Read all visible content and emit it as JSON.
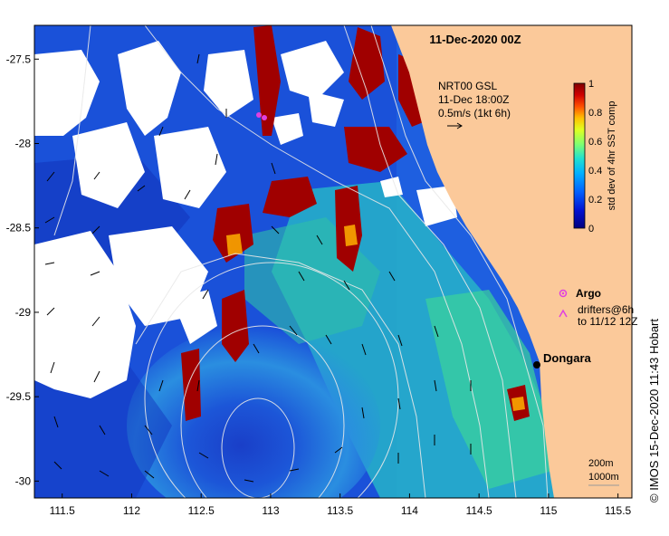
{
  "title": "11-Dec-2020 00Z",
  "current_info": {
    "line1": "NRT00 GSL",
    "line2": "11-Dec 18:00Z",
    "line3": "0.5m/s (1kt 6h)"
  },
  "colorbar": {
    "label": "std dev of 4hr SST comp",
    "ticks": [
      "0",
      "0.2",
      "0.4",
      "0.6",
      "0.8",
      "1"
    ],
    "range": [
      0,
      1
    ]
  },
  "legend": {
    "argo": "Argo",
    "drifters_line1": "drifters@6h",
    "drifters_line2": "to 11/12 12Z"
  },
  "place": {
    "name": "Dongara",
    "lon": 114.93,
    "lat": -29.25
  },
  "scale": {
    "line1": "200m",
    "line2": "1000m"
  },
  "credit": "© IMOS 15-Dec-2020 11:43 Hobart",
  "axes": {
    "lon_ticks": [
      "111.5",
      "112",
      "112.5",
      "113",
      "113.5",
      "114",
      "114.5",
      "115",
      "115.5"
    ],
    "lat_ticks": [
      "-27.5",
      "-28",
      "-28.5",
      "-29",
      "-29.5",
      "-30"
    ],
    "lon_range": [
      111.3,
      115.6
    ],
    "lat_range": [
      -30.1,
      -27.3
    ]
  },
  "colors": {
    "land": "#fbc99a",
    "dongara_marker": "#000000",
    "argo_marker": "#e040e0",
    "contour": "#e8e8e8"
  }
}
